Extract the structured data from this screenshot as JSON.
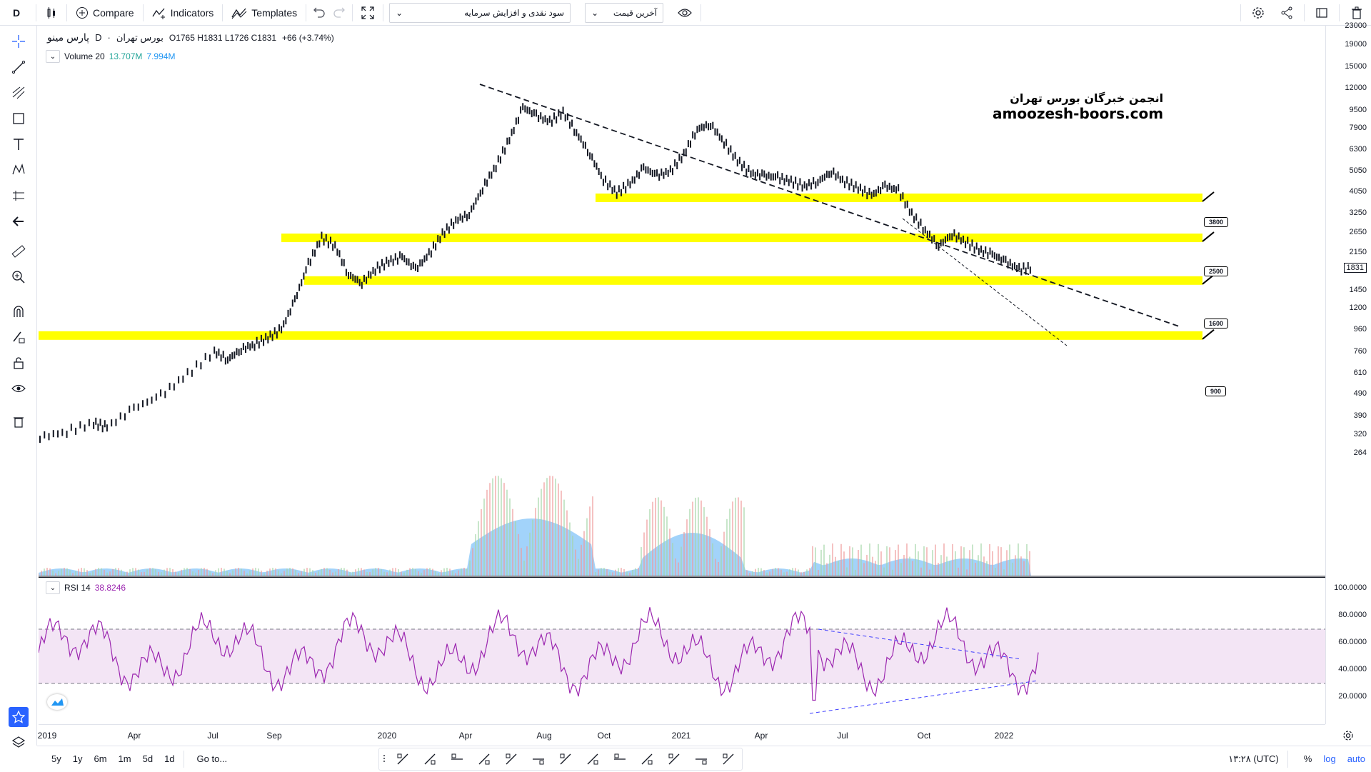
{
  "toolbar": {
    "interval": "D",
    "compare": "Compare",
    "indicators": "Indicators",
    "templates": "Templates",
    "select1": "سود نقدی و افزایش سرمایه",
    "select2": "آخرین قیمت"
  },
  "legend": {
    "symbol": "پارس مینو",
    "interval": "D",
    "exchange": "بورس تهران",
    "ohlc": "O1765  H1831  L1726  C1831",
    "change": "+66 (+3.74%)",
    "volume_label": "Volume 20",
    "volume_val1": "13.707M",
    "volume_val2": "7.994M"
  },
  "watermark": {
    "line1": "انجمن خبرگان بورس تهران",
    "line2": "amoozesh-boors.com"
  },
  "levels": [
    {
      "label": "3800",
      "value": 3800
    },
    {
      "label": "2500",
      "value": 2500
    },
    {
      "label": "1600",
      "value": 1600
    },
    {
      "label": "900",
      "value": 900
    }
  ],
  "price_scale": [
    "23000",
    "19000",
    "15000",
    "12000",
    "9500",
    "7900",
    "6300",
    "5050",
    "4050",
    "3250",
    "2650",
    "2150",
    "1831",
    "1450",
    "1200",
    "960",
    "760",
    "610",
    "490",
    "390",
    "320",
    "264"
  ],
  "last_price": "1831",
  "rsi": {
    "label": "RSI 14",
    "value": "38.8246",
    "ticks": [
      "100.0000",
      "80.0000",
      "60.0000",
      "40.0000",
      "20.0000"
    ]
  },
  "time_scale": [
    "2019",
    "Apr",
    "Jul",
    "Sep",
    "2020",
    "Apr",
    "Aug",
    "Oct",
    "2021",
    "Apr",
    "Jul",
    "Oct",
    "2022"
  ],
  "bottom": {
    "ranges": [
      "5y",
      "1y",
      "6m",
      "1m",
      "5d",
      "1d"
    ],
    "goto": "Go to...",
    "clock": "۱۳:۲۸ (UTC)",
    "percent": "%",
    "log": "log",
    "auto": "auto"
  },
  "colors": {
    "level_band": "#ffff00",
    "rsi_line": "#9c27b0",
    "rsi_band": "#f3e5f5",
    "volume_area": "#64b5f6",
    "accent": "#2962ff"
  },
  "chart_data": {
    "type": "bar",
    "scale": "log",
    "ylim": [
      250,
      23000
    ],
    "series_path_points_price": [
      [
        0,
        310
      ],
      [
        2,
        330
      ],
      [
        4,
        360
      ],
      [
        5,
        345
      ],
      [
        7,
        420
      ],
      [
        9,
        480
      ],
      [
        11,
        600
      ],
      [
        13,
        760
      ],
      [
        14,
        700
      ],
      [
        15,
        780
      ],
      [
        16,
        820
      ],
      [
        17,
        880
      ],
      [
        18,
        960
      ],
      [
        19,
        1300
      ],
      [
        20,
        1900
      ],
      [
        21,
        2500
      ],
      [
        22,
        2300
      ],
      [
        23,
        1700
      ],
      [
        24,
        1560
      ],
      [
        25,
        1800
      ],
      [
        26,
        1950
      ],
      [
        27,
        2050
      ],
      [
        28,
        1800
      ],
      [
        29,
        2100
      ],
      [
        30,
        2600
      ],
      [
        31,
        3000
      ],
      [
        32,
        3200
      ],
      [
        33,
        4200
      ],
      [
        34,
        5300
      ],
      [
        35,
        7000
      ],
      [
        36,
        9800
      ],
      [
        37,
        9000
      ],
      [
        38,
        8400
      ],
      [
        39,
        9300
      ],
      [
        40,
        7500
      ],
      [
        41,
        6000
      ],
      [
        42,
        4600
      ],
      [
        43,
        4000
      ],
      [
        44,
        4400
      ],
      [
        45,
        5200
      ],
      [
        46,
        4800
      ],
      [
        47,
        5000
      ],
      [
        48,
        6000
      ],
      [
        49,
        7800
      ],
      [
        50,
        8200
      ],
      [
        51,
        6800
      ],
      [
        52,
        5600
      ],
      [
        53,
        4900
      ],
      [
        54,
        4800
      ],
      [
        55,
        4700
      ],
      [
        56,
        4500
      ],
      [
        57,
        4300
      ],
      [
        58,
        4500
      ],
      [
        59,
        5000
      ],
      [
        60,
        4500
      ],
      [
        61,
        4200
      ],
      [
        62,
        3900
      ],
      [
        63,
        4300
      ],
      [
        64,
        4100
      ],
      [
        65,
        3200
      ],
      [
        66,
        2700
      ],
      [
        67,
        2300
      ],
      [
        68,
        2600
      ],
      [
        69,
        2400
      ],
      [
        70,
        2200
      ],
      [
        71,
        2100
      ],
      [
        72,
        1950
      ],
      [
        73,
        1800
      ],
      [
        74,
        1831
      ]
    ]
  }
}
